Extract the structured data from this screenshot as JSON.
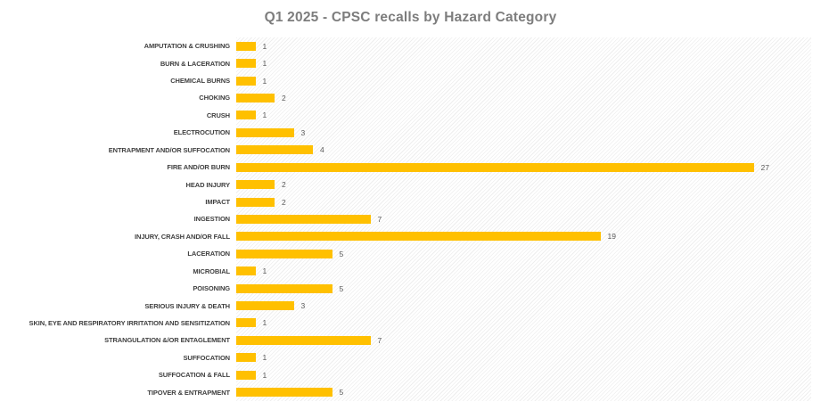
{
  "chart_data": {
    "type": "bar",
    "orientation": "horizontal",
    "title": "Q1 2025 - CPSC recalls by Hazard Category",
    "categories": [
      "AMPUTATION & CRUSHING",
      "BURN & LACERATION",
      "CHEMICAL BURNS",
      "CHOKING",
      "CRUSH",
      "ELECTROCUTION",
      "ENTRAPMENT AND/OR SUFFOCATION",
      "FIRE AND/OR BURN",
      "HEAD INJURY",
      "IMPACT",
      "INGESTION",
      "INJURY, CRASH AND/OR FALL",
      "LACERATION",
      "MICROBIAL",
      "POISONING",
      "SERIOUS INJURY & DEATH",
      "SKIN, EYE AND RESPIRATORY IRRITATION AND SENSITIZATION",
      "STRANGULATION &/OR ENTAGLEMENT",
      "SUFFOCATION",
      "SUFFOCATION & FALL",
      "TIPOVER & ENTRAPMENT"
    ],
    "values": [
      1,
      1,
      1,
      2,
      1,
      3,
      4,
      27,
      2,
      2,
      7,
      19,
      5,
      1,
      5,
      3,
      1,
      7,
      1,
      1,
      5
    ],
    "data_labels": [
      1,
      1,
      1,
      2,
      1,
      3,
      4,
      27,
      2,
      2,
      7,
      19,
      5,
      1,
      5,
      3,
      1,
      7,
      1,
      1,
      5
    ],
    "xlabel": "",
    "ylabel": "",
    "xlim": [
      0,
      30
    ],
    "grid": false,
    "legend": false,
    "plot_background": "hatched-diagonal",
    "colors": {
      "bar": "#FFC000",
      "title": "#7d7d7d",
      "category_label": "#404040",
      "value_label": "#595959"
    }
  }
}
